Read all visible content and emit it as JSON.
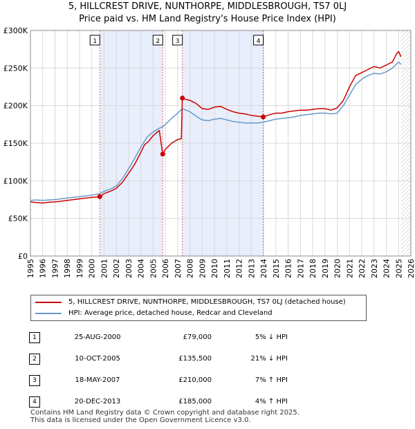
{
  "title": {
    "line1": "5, HILLCREST DRIVE, NUNTHORPE, MIDDLESBROUGH, TS7 0LJ",
    "line2": "Price paid vs. HM Land Registry's House Price Index (HPI)"
  },
  "chart_data": {
    "type": "line",
    "title": "Price paid vs. HM Land Registry's House Price Index (HPI)",
    "xlabel": "",
    "ylabel": "",
    "xlim": [
      1995,
      2026
    ],
    "ylim": [
      0,
      300000
    ],
    "y_ticks": [
      0,
      50000,
      100000,
      150000,
      200000,
      250000,
      300000
    ],
    "y_tick_labels": [
      "£0",
      "£50K",
      "£100K",
      "£150K",
      "£200K",
      "£250K",
      "£300K"
    ],
    "x_ticks": [
      1995,
      1996,
      1997,
      1998,
      1999,
      2000,
      2001,
      2002,
      2003,
      2004,
      2005,
      2006,
      2007,
      2008,
      2009,
      2010,
      2011,
      2012,
      2013,
      2014,
      2015,
      2016,
      2017,
      2018,
      2019,
      2020,
      2021,
      2022,
      2023,
      2024,
      2025,
      2026
    ],
    "x_tick_labels": [
      "1995",
      "1996",
      "1997",
      "1998",
      "1999",
      "2000",
      "2001",
      "2002",
      "2003",
      "2004",
      "2005",
      "2006",
      "2007",
      "2008",
      "2009",
      "2010",
      "2011",
      "2012",
      "2013",
      "2014",
      "2015",
      "2016",
      "2017",
      "2018",
      "2019",
      "2020",
      "2021",
      "2022",
      "2023",
      "2024",
      "2025",
      "2026"
    ],
    "grid": true,
    "data_end": 2025.2,
    "series": [
      {
        "name": "5, HILLCREST DRIVE, NUNTHORPE, MIDDLESBROUGH, TS7 0LJ (detached house)",
        "color": "#cc0000",
        "x": [
          1995,
          1995.5,
          1996,
          1996.5,
          1997,
          1997.5,
          1998,
          1998.5,
          1999,
          1999.5,
          2000,
          2000.65,
          2001,
          2001.5,
          2002,
          2002.5,
          2003,
          2003.5,
          2004,
          2004.3,
          2004.6,
          2005,
          2005.5,
          2005.78,
          2006,
          2006.5,
          2007,
          2007.3,
          2007.38,
          2007.5,
          2008,
          2008.5,
          2009,
          2009.5,
          2010,
          2010.5,
          2011,
          2011.5,
          2012,
          2012.5,
          2013,
          2013.5,
          2013.97,
          2014.5,
          2015,
          2015.5,
          2016,
          2016.5,
          2017,
          2017.5,
          2018,
          2018.5,
          2019,
          2019.5,
          2020,
          2020.5,
          2021,
          2021.5,
          2022,
          2022.5,
          2023,
          2023.5,
          2024,
          2024.5,
          2024.8,
          2025,
          2025.2
        ],
        "y": [
          72000,
          71000,
          70500,
          71500,
          72000,
          73000,
          74000,
          75000,
          76000,
          77000,
          78000,
          79000,
          83000,
          86000,
          90000,
          98000,
          110000,
          122000,
          138000,
          148000,
          152000,
          160000,
          167000,
          135500,
          142000,
          150000,
          155000,
          156000,
          210000,
          209000,
          207000,
          203000,
          196000,
          195000,
          198000,
          199000,
          195000,
          192000,
          190000,
          189000,
          187000,
          186000,
          185000,
          188000,
          190000,
          190000,
          192000,
          193000,
          194000,
          194000,
          195000,
          196000,
          196000,
          194000,
          197000,
          207000,
          225000,
          240000,
          244000,
          248000,
          252000,
          250000,
          254000,
          258000,
          268000,
          272000,
          265000
        ]
      },
      {
        "name": "HPI: Average price, detached house, Redcar and Cleveland",
        "color": "#6699cc",
        "x": [
          1995,
          1995.5,
          1996,
          1996.5,
          1997,
          1997.5,
          1998,
          1998.5,
          1999,
          1999.5,
          2000,
          2000.65,
          2001,
          2001.5,
          2002,
          2002.5,
          2003,
          2003.5,
          2004,
          2004.5,
          2005,
          2005.5,
          2005.78,
          2006,
          2006.5,
          2007,
          2007.38,
          2008,
          2008.5,
          2009,
          2009.5,
          2010,
          2010.5,
          2011,
          2011.5,
          2012,
          2012.5,
          2013,
          2013.5,
          2013.97,
          2014.5,
          2015,
          2015.5,
          2016,
          2016.5,
          2017,
          2017.5,
          2018,
          2018.5,
          2019,
          2019.5,
          2020,
          2020.5,
          2021,
          2021.5,
          2022,
          2022.5,
          2023,
          2023.5,
          2024,
          2024.5,
          2025,
          2025.2
        ],
        "y": [
          74000,
          74500,
          74000,
          74500,
          75000,
          76000,
          77000,
          78000,
          79000,
          80000,
          81000,
          83000,
          86000,
          89000,
          93000,
          103000,
          116000,
          130000,
          145000,
          158000,
          165000,
          170000,
          172000,
          175000,
          183000,
          190000,
          196000,
          192000,
          186000,
          181000,
          180000,
          182000,
          183000,
          181000,
          179000,
          178000,
          177000,
          177000,
          177000,
          178000,
          180000,
          182000,
          183000,
          184000,
          185000,
          187000,
          188000,
          189000,
          190000,
          190000,
          189000,
          190000,
          200000,
          214000,
          228000,
          235000,
          240000,
          243000,
          242000,
          245000,
          250000,
          258000,
          255000
        ]
      }
    ],
    "sale_markers": [
      {
        "id": "1",
        "x": 2000.65,
        "y": 79000
      },
      {
        "id": "2",
        "x": 2005.78,
        "y": 135500
      },
      {
        "id": "3",
        "x": 2007.38,
        "y": 210000
      },
      {
        "id": "4",
        "x": 2013.97,
        "y": 185000
      }
    ],
    "shaded_spans": [
      [
        2000.65,
        2005.78
      ],
      [
        2007.38,
        2013.97
      ]
    ]
  },
  "legend": {
    "property_label": "5, HILLCREST DRIVE, NUNTHORPE, MIDDLESBROUGH, TS7 0LJ (detached house)",
    "hpi_label": "HPI: Average price, detached house, Redcar and Cleveland"
  },
  "transactions": [
    {
      "id": "1",
      "date": "25-AUG-2000",
      "price": "£79,000",
      "hpi": "5% ↓ HPI"
    },
    {
      "id": "2",
      "date": "10-OCT-2005",
      "price": "£135,500",
      "hpi": "21% ↓ HPI"
    },
    {
      "id": "3",
      "date": "18-MAY-2007",
      "price": "£210,000",
      "hpi": "7% ↑ HPI"
    },
    {
      "id": "4",
      "date": "20-DEC-2013",
      "price": "£185,000",
      "hpi": "4% ↑ HPI"
    }
  ],
  "footer": {
    "line1": "Contains HM Land Registry data © Crown copyright and database right 2025.",
    "line2": "This data is licensed under the Open Government Licence v3.0."
  },
  "colors": {
    "property": "#cc0000",
    "hpi": "#6699cc",
    "shade": "#e8eefb",
    "grid": "#d8d8d8",
    "marker_line": "#e06666"
  }
}
